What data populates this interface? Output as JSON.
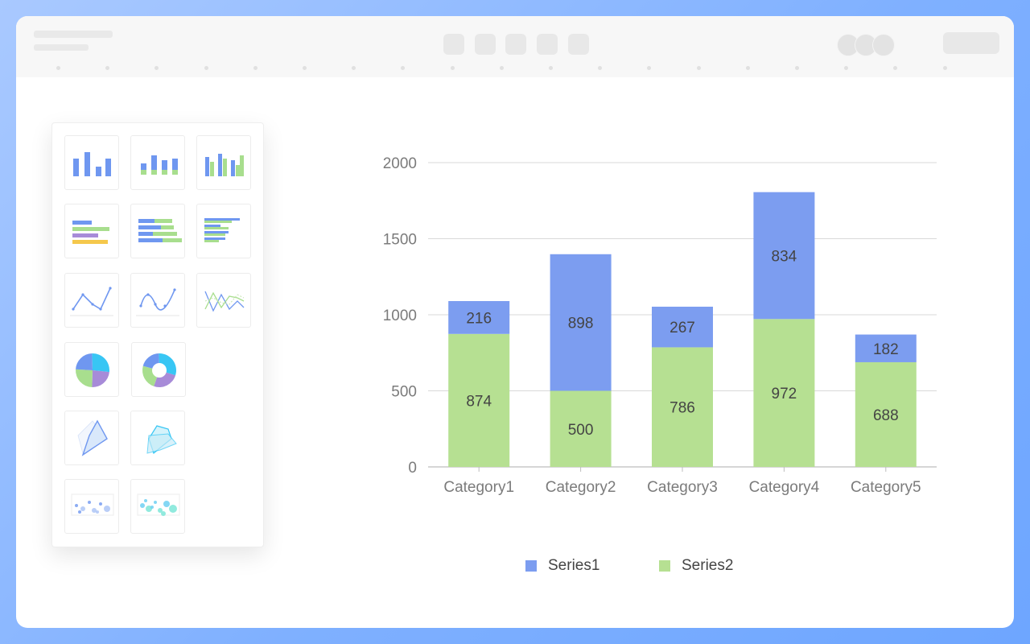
{
  "colors": {
    "series1": "#7c9df0",
    "series2": "#b6e092",
    "grid": "#d9d9d9",
    "axis_text": "#7b7b7b",
    "label_text": "#444444"
  },
  "chart_picker": {
    "tiles": [
      {
        "name": "bar-chart-icon"
      },
      {
        "name": "stacked-bar-chart-icon"
      },
      {
        "name": "grouped-bar-chart-icon"
      },
      {
        "name": "horizontal-bar-chart-icon"
      },
      {
        "name": "stacked-horizontal-bar-chart-icon"
      },
      {
        "name": "grouped-horizontal-bar-chart-icon"
      },
      {
        "name": "line-chart-icon"
      },
      {
        "name": "smooth-line-chart-icon"
      },
      {
        "name": "multi-line-chart-icon"
      },
      {
        "name": "pie-chart-icon"
      },
      {
        "name": "donut-chart-icon"
      },
      {
        "name": "radar-chart-icon"
      },
      {
        "name": "multi-radar-chart-icon"
      },
      {
        "name": "scatter-chart-icon"
      },
      {
        "name": "bubble-chart-icon"
      }
    ]
  },
  "chart_data": {
    "type": "bar",
    "stacked": true,
    "categories": [
      "Category1",
      "Category2",
      "Category3",
      "Category4",
      "Category5"
    ],
    "series": [
      {
        "name": "Series2",
        "values": [
          874,
          500,
          786,
          972,
          688
        ],
        "color": "#b6e092"
      },
      {
        "name": "Series1",
        "values": [
          216,
          898,
          267,
          834,
          182
        ],
        "color": "#7c9df0"
      }
    ],
    "ylim": [
      0,
      2000
    ],
    "yticks": [
      0,
      500,
      1000,
      1500,
      2000
    ],
    "grid": true,
    "legend_position": "bottom-center",
    "legend": [
      "Series1",
      "Series2"
    ]
  }
}
